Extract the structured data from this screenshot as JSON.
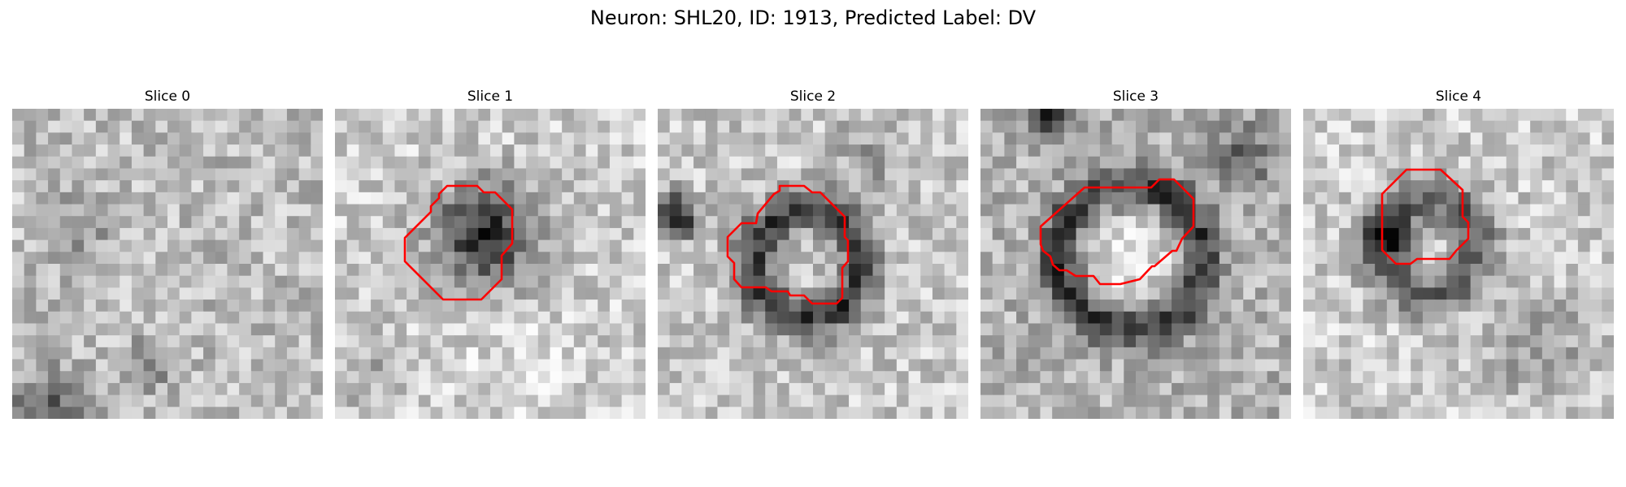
{
  "figure": {
    "title": "Neuron: SHL20, ID: 1913, Predicted Label: DV"
  },
  "panels": [
    {
      "title": "Slice 0",
      "has_contour": false,
      "seed": 11,
      "feature": "noise"
    },
    {
      "title": "Slice 1",
      "has_contour": true,
      "seed": 23,
      "feature": "dark-blob"
    },
    {
      "title": "Slice 2",
      "has_contour": true,
      "seed": 37,
      "feature": "dark-ring"
    },
    {
      "title": "Slice 3",
      "has_contour": true,
      "seed": 53,
      "feature": "bright-center-ring"
    },
    {
      "title": "Slice 4",
      "has_contour": true,
      "seed": 71,
      "feature": "faint-ring"
    }
  ],
  "colors": {
    "contour": "#ff0000"
  }
}
